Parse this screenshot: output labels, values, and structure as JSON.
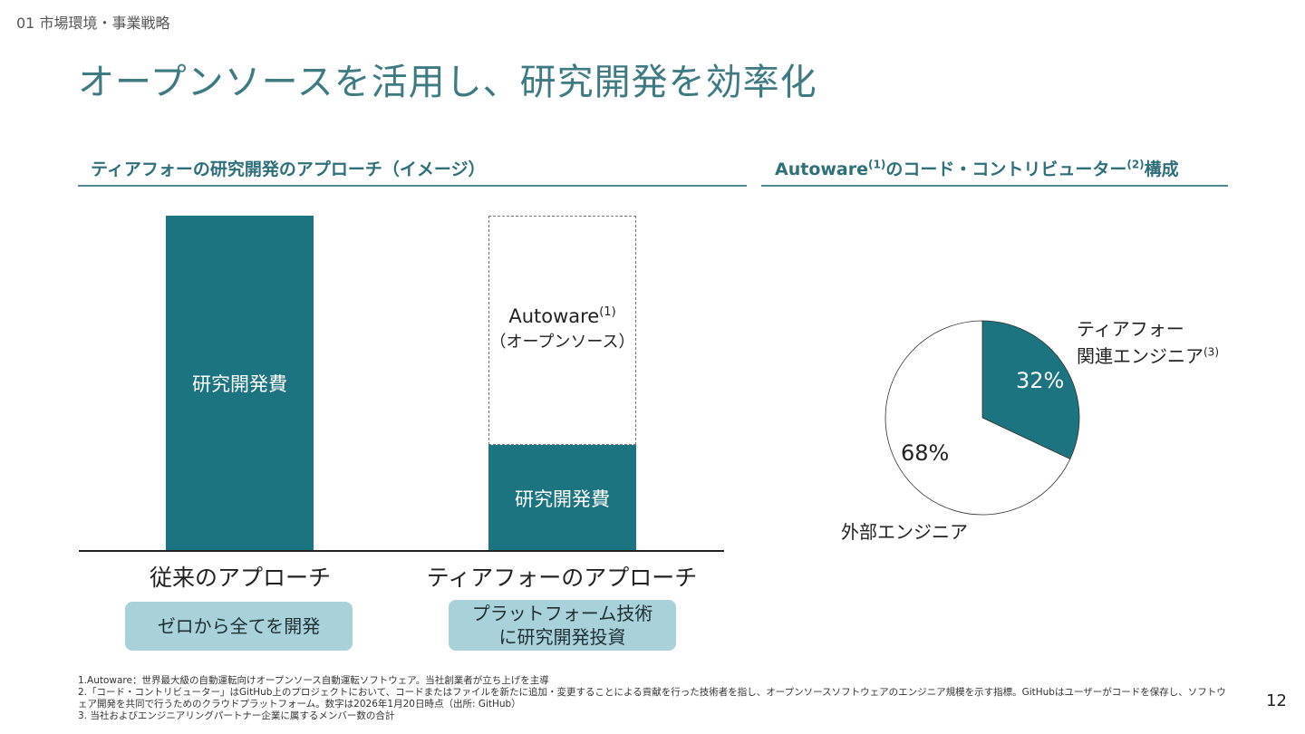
{
  "header": {
    "breadcrumb": "01 市場環境・事業戦略",
    "title": "オープンソースを活用し、研究開発を効率化"
  },
  "left_section": {
    "heading": "ティアフォーの研究開発のアプローチ（イメージ）",
    "bar1_label": "研究開発費",
    "bar2_top_name": "Autoware",
    "bar2_top_name_ref": "(1)",
    "bar2_top_sub": "（オープンソース）",
    "bar2_bottom_label": "研究開発費",
    "cat1": "従来のアプローチ",
    "cat2": "ティアフォーのアプローチ",
    "pill1": "ゼロから全てを開発",
    "pill2_line1": "プラットフォーム技術",
    "pill2_line2": "に研究開発投資"
  },
  "right_section": {
    "heading_pre": "Autoware",
    "heading_ref1": "(1)",
    "heading_mid": "のコード・コントリビューター",
    "heading_ref2": "(2)",
    "heading_post": "構成",
    "tier4_label_line1": "ティアフォー",
    "tier4_label_line2": "関連エンジニア",
    "tier4_ref": "(3)",
    "external_label": "外部エンジニア"
  },
  "chart_data": {
    "type": "pie",
    "slices": [
      {
        "label": "ティアフォー関連エンジニア",
        "value": 32,
        "display": "32%",
        "color": "#1c7480"
      },
      {
        "label": "外部エンジニア",
        "value": 68,
        "display": "68%",
        "color": "#ffffff"
      }
    ]
  },
  "footnotes": {
    "note1": "1.Autoware：世界最大級の自動運転向けオープンソース自動運転ソフトウェア。当社創業者が立ち上げを主導",
    "note2": "2.「コード・コントリビューター」はGitHub上のプロジェクトにおいて、コードまたはファイルを新たに追加・変更することによる貢献を行った技術者を指し、オープンソースソフトウェアのエンジニア規模を示す指標。GitHubはユーザーがコードを保存し、ソフトウェア開発を共同で行うためのクラウドプラットフォーム。数字は2026年1月20日時点（出所: GitHub）",
    "note3": "3. 当社およびエンジニアリングパートナー企業に属するメンバー数の合計"
  },
  "page_number": "12",
  "colors": {
    "accent": "#1c7480",
    "title": "#3d7a82",
    "pill": "#a9d1da"
  }
}
